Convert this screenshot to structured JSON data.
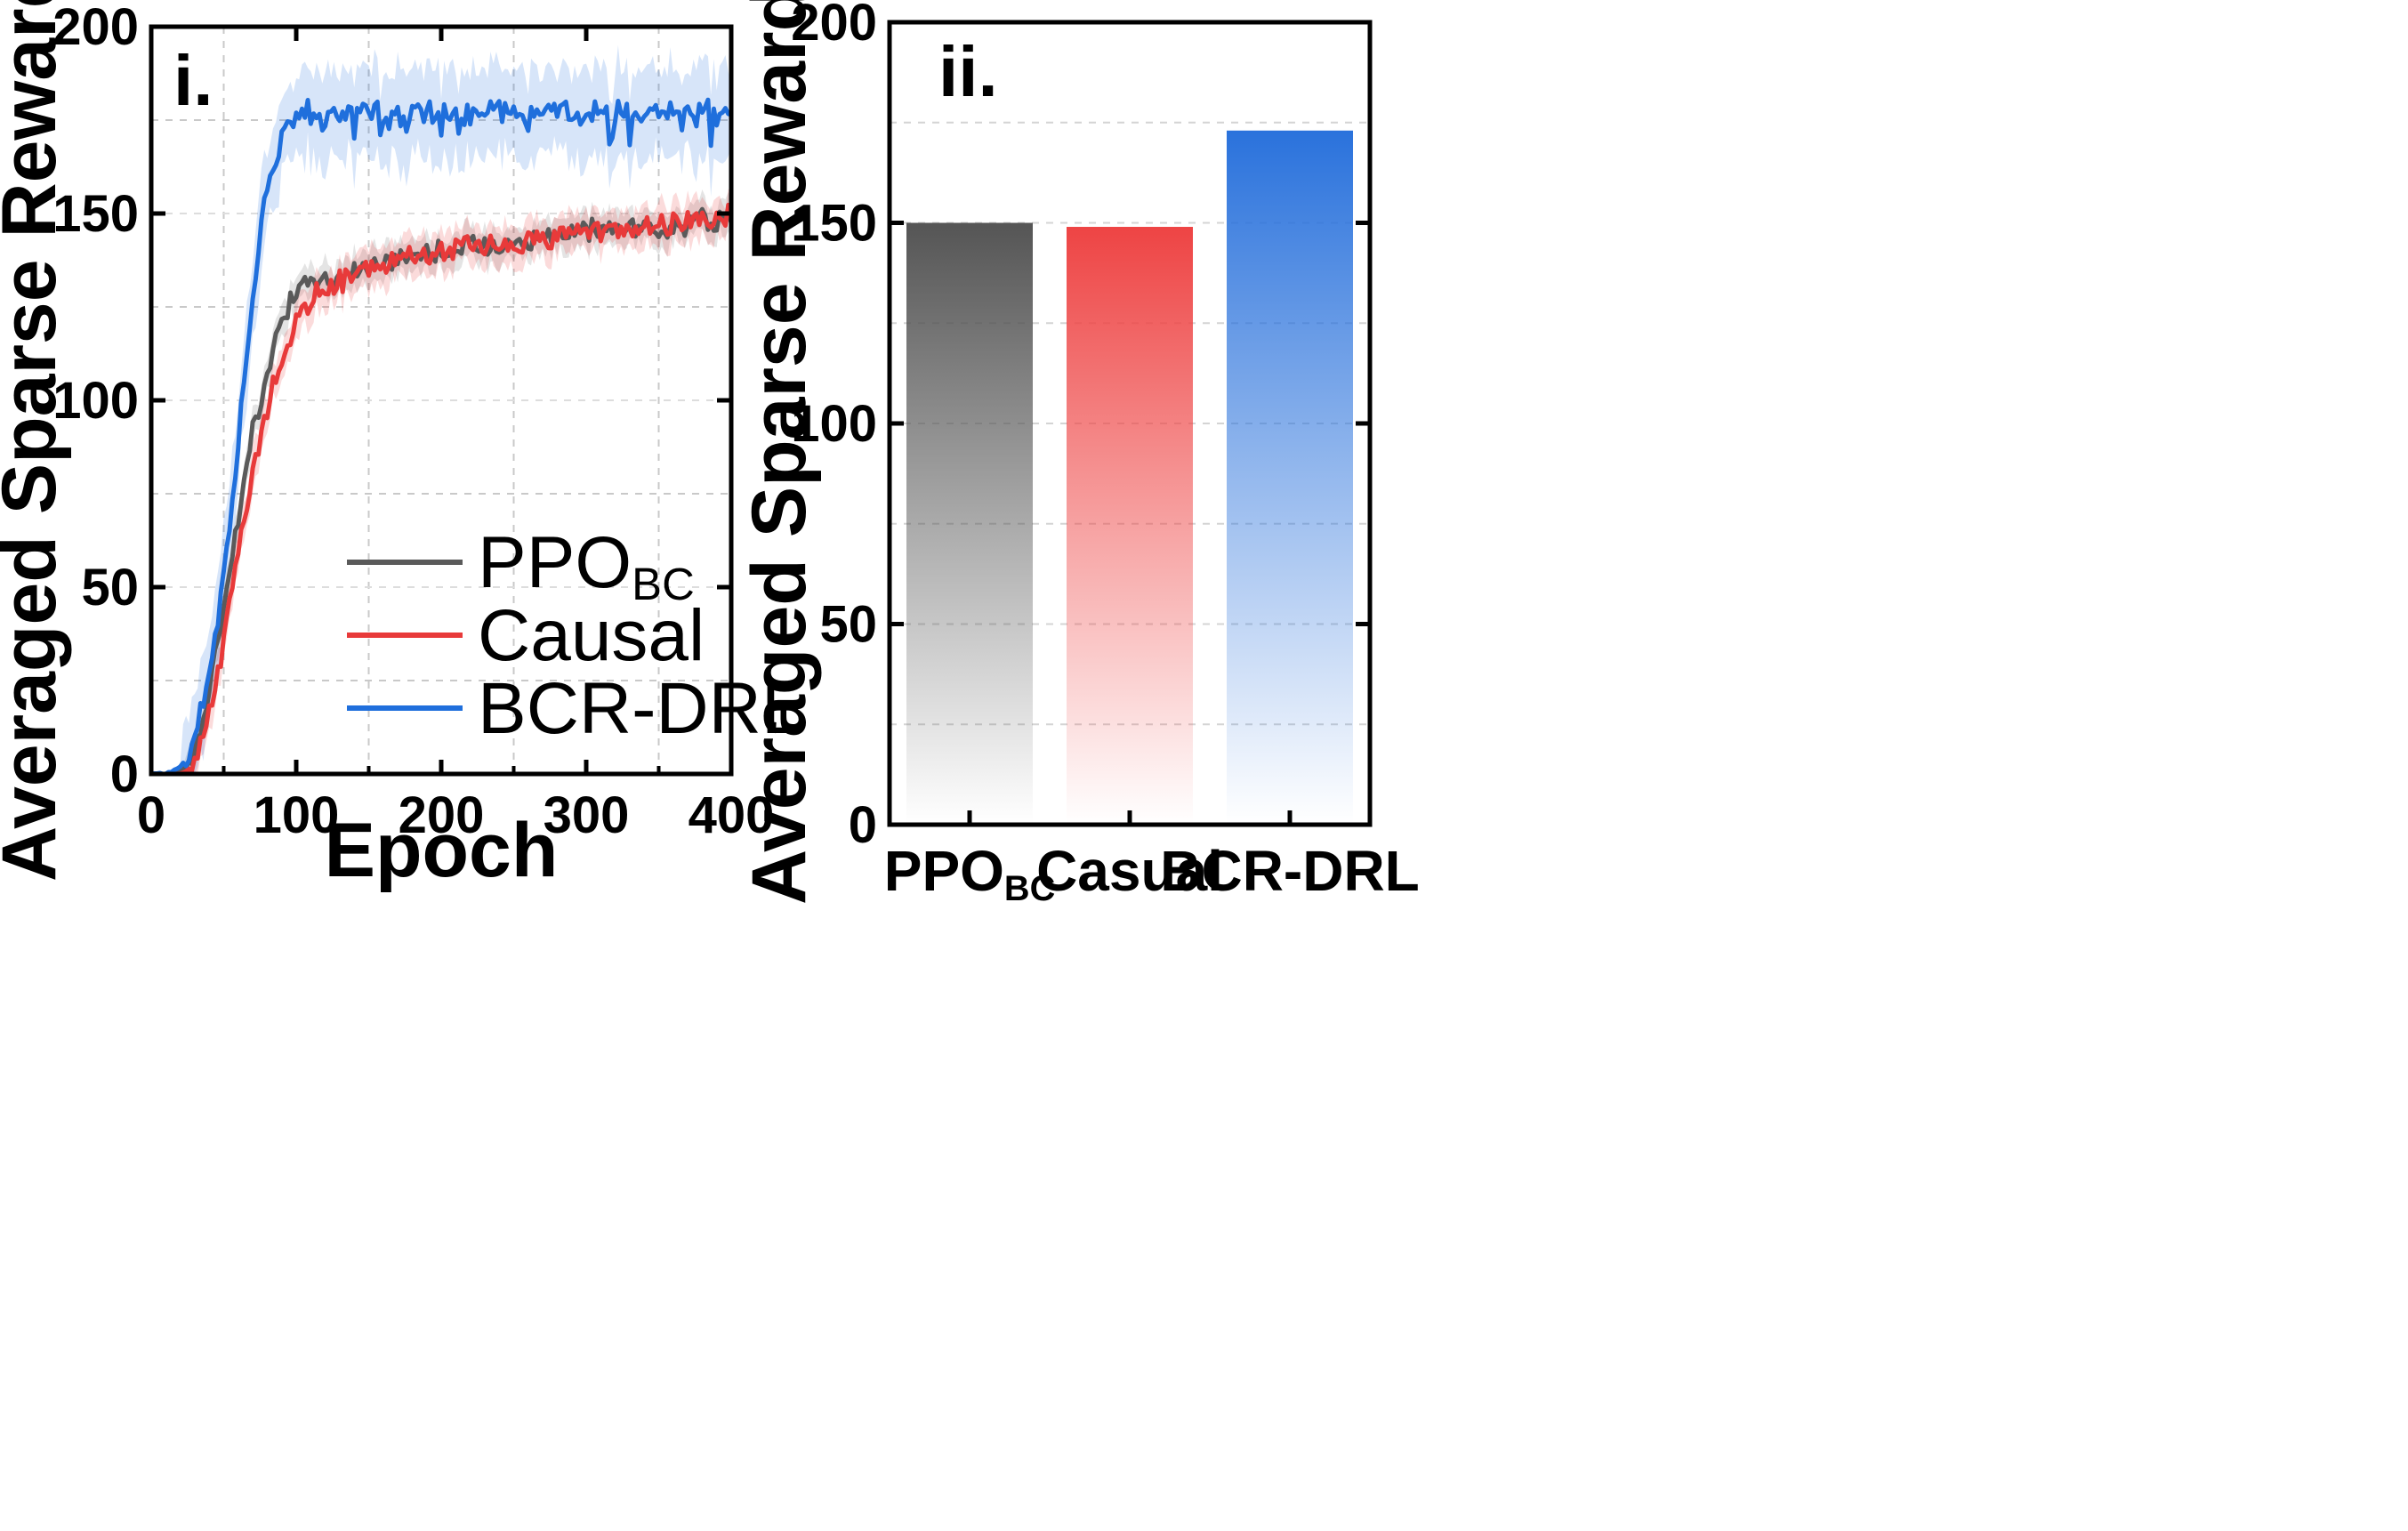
{
  "chart_data": [
    {
      "type": "line",
      "panel_label": "i.",
      "xlabel": "Epoch",
      "ylabel": "Averaged Sparse Rewards",
      "xlim": [
        0,
        400
      ],
      "ylim": [
        0,
        200
      ],
      "xticks": [
        "0",
        "100",
        "200",
        "300",
        "400"
      ],
      "yticks": [
        "0",
        "50",
        "100",
        "150",
        "200"
      ],
      "grid": true,
      "legend_position": "bottom-right",
      "series": [
        {
          "name": "PPO",
          "name_subscript": "BC",
          "color": "#5a5a5a",
          "x": [
            0,
            10,
            20,
            25,
            30,
            35,
            40,
            45,
            50,
            55,
            60,
            65,
            70,
            75,
            80,
            85,
            90,
            95,
            100,
            105,
            110,
            120,
            130,
            140,
            150,
            160,
            170,
            180,
            190,
            200,
            220,
            240,
            260,
            280,
            300,
            320,
            340,
            360,
            380,
            400
          ],
          "y": [
            0,
            0,
            1,
            3,
            7,
            13,
            22,
            33,
            45,
            57,
            68,
            80,
            92,
            100,
            108,
            116,
            122,
            126,
            128,
            130,
            131,
            132,
            133,
            135,
            136,
            137,
            138,
            139,
            140,
            140,
            141,
            142,
            143,
            144,
            145,
            146,
            146,
            147,
            148,
            149
          ],
          "band": 5
        },
        {
          "name": "Causal",
          "color": "#e83a3a",
          "x": [
            0,
            10,
            20,
            25,
            30,
            35,
            40,
            45,
            50,
            55,
            60,
            65,
            70,
            75,
            80,
            85,
            90,
            95,
            100,
            105,
            110,
            120,
            130,
            140,
            150,
            160,
            170,
            180,
            190,
            200,
            220,
            240,
            260,
            280,
            300,
            320,
            340,
            360,
            380,
            400
          ],
          "y": [
            0,
            0,
            0,
            1,
            4,
            9,
            16,
            25,
            36,
            48,
            60,
            70,
            80,
            88,
            97,
            105,
            111,
            116,
            120,
            124,
            127,
            130,
            132,
            134,
            135,
            136,
            137,
            138,
            139,
            140,
            141,
            142,
            143,
            144,
            145,
            146,
            147,
            147,
            148,
            149
          ],
          "band": 6
        },
        {
          "name": "BCR-DRL",
          "color": "#1f6fdc",
          "x": [
            0,
            10,
            20,
            25,
            30,
            35,
            40,
            45,
            50,
            55,
            60,
            65,
            70,
            75,
            80,
            85,
            90,
            95,
            100,
            110,
            120,
            130,
            140,
            160,
            180,
            200,
            220,
            240,
            260,
            280,
            300,
            320,
            340,
            360,
            380,
            400
          ],
          "y": [
            0,
            0,
            2,
            5,
            10,
            18,
            28,
            40,
            54,
            70,
            88,
            108,
            128,
            145,
            158,
            165,
            170,
            174,
            176,
            177,
            177,
            177,
            177,
            177,
            177,
            177,
            177,
            177,
            177,
            177,
            177,
            177,
            177,
            177,
            177,
            177
          ],
          "band": 14
        }
      ]
    },
    {
      "type": "bar",
      "panel_label": "ii.",
      "ylabel": "Averaged Sparse Rewards",
      "ylim": [
        0,
        200
      ],
      "yticks": [
        "0",
        "50",
        "100",
        "150",
        "200"
      ],
      "grid": true,
      "categories": [
        {
          "label": "PPO",
          "subscript": "BC"
        },
        {
          "label": "Casual",
          "subscript": ""
        },
        {
          "label": "BCR-DRL",
          "subscript": ""
        }
      ],
      "values": [
        150,
        149,
        173
      ],
      "colors": [
        "#555555",
        "#ee4444",
        "#2a72dc"
      ]
    }
  ]
}
